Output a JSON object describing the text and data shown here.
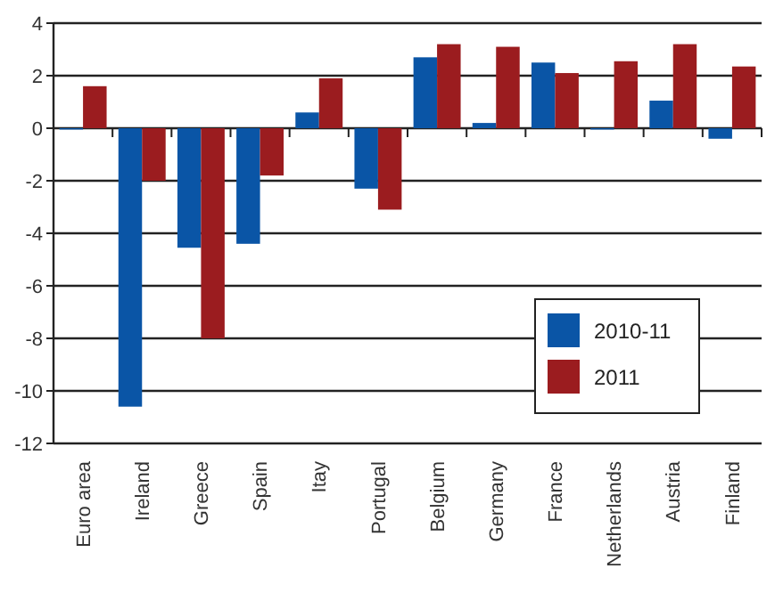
{
  "chart_data": {
    "type": "bar",
    "categories": [
      "Euro area",
      "Ireland",
      "Greece",
      "Spain",
      "Itay",
      "Portugal",
      "Belgium",
      "Germany",
      "France",
      "Netherlands",
      "Austria",
      "Finland"
    ],
    "series": [
      {
        "name": "2010-11",
        "color": "#0a55a6",
        "values": [
          -0.05,
          -10.6,
          -4.55,
          -4.4,
          0.6,
          -2.3,
          2.7,
          0.2,
          2.5,
          -0.05,
          1.05,
          -0.4
        ]
      },
      {
        "name": "2011",
        "color": "#9b1c1f",
        "values": [
          1.6,
          -2.0,
          -8.0,
          -1.8,
          1.9,
          -3.1,
          3.2,
          3.1,
          2.1,
          2.55,
          3.2,
          2.35
        ]
      }
    ],
    "ylim": [
      -12,
      4
    ],
    "yticks": [
      -12,
      -10,
      -8,
      -6,
      -4,
      -2,
      0,
      2,
      4
    ],
    "grid": "y",
    "legend": "right"
  }
}
